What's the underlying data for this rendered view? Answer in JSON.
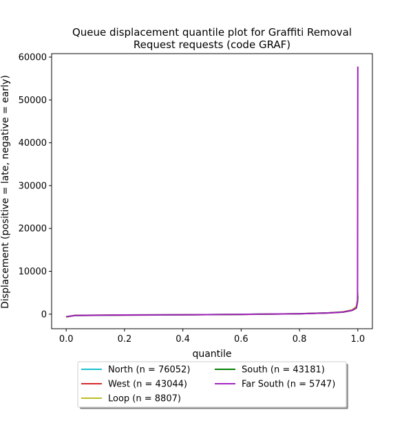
{
  "chart_data": {
    "type": "line",
    "title_lines": [
      "Queue displacement quantile plot for Graffiti Removal",
      "Request  requests (code GRAF)"
    ],
    "xlabel": "quantile",
    "ylabel": "Displacement (positive = late, negative = early)",
    "xlim": [
      -0.05,
      1.05
    ],
    "ylim": [
      -3400,
      60800
    ],
    "x_ticks": [
      0.0,
      0.2,
      0.4,
      0.6,
      0.8,
      1.0
    ],
    "x_tick_labels": [
      "0.0",
      "0.2",
      "0.4",
      "0.6",
      "0.8",
      "1.0"
    ],
    "y_ticks": [
      0,
      10000,
      20000,
      30000,
      40000,
      50000,
      60000
    ],
    "y_tick_labels": [
      "0",
      "10000",
      "20000",
      "30000",
      "40000",
      "50000",
      "60000"
    ],
    "grid": false,
    "legend_placement": "below plot, two columns",
    "series": [
      {
        "name": "North (n = 76052)",
        "color": "#17becf",
        "x": [
          0.0,
          0.03,
          0.2,
          0.4,
          0.6,
          0.8,
          0.9,
          0.95,
          0.98,
          0.995,
          0.999,
          1.0
        ],
        "y": [
          -600,
          -300,
          -200,
          -150,
          -50,
          100,
          300,
          500,
          900,
          1500,
          3000,
          4500
        ]
      },
      {
        "name": "West (n = 43044)",
        "color": "#d62728",
        "x": [
          0.0,
          0.03,
          0.2,
          0.4,
          0.6,
          0.8,
          0.9,
          0.95,
          0.98,
          0.995,
          0.999,
          1.0
        ],
        "y": [
          -650,
          -320,
          -220,
          -160,
          -60,
          90,
          280,
          480,
          850,
          1400,
          2800,
          4000
        ]
      },
      {
        "name": "Loop (n = 8807)",
        "color": "#bcbd22",
        "x": [
          0.0,
          0.03,
          0.2,
          0.4,
          0.6,
          0.8,
          0.9,
          0.95,
          0.98,
          0.995,
          0.999,
          1.0
        ],
        "y": [
          -580,
          -280,
          -190,
          -140,
          -40,
          110,
          320,
          550,
          1000,
          1800,
          3500,
          5000
        ]
      },
      {
        "name": "South (n = 43181)",
        "color": "#008000",
        "x": [
          0.0,
          0.03,
          0.2,
          0.4,
          0.6,
          0.8,
          0.9,
          0.95,
          0.98,
          0.995,
          0.999,
          1.0
        ],
        "y": [
          -620,
          -310,
          -210,
          -155,
          -55,
          95,
          290,
          490,
          880,
          1450,
          2900,
          4200
        ]
      },
      {
        "name": "Far South (n = 5747)",
        "color": "#a020c0",
        "x": [
          0.0,
          0.03,
          0.2,
          0.4,
          0.6,
          0.8,
          0.9,
          0.95,
          0.98,
          0.995,
          0.999,
          1.0
        ],
        "y": [
          -600,
          -300,
          -200,
          -150,
          -50,
          100,
          300,
          500,
          900,
          1500,
          3000,
          57800
        ]
      }
    ],
    "legend_columns": [
      [
        "North (n = 76052)",
        "West (n = 43044)",
        "Loop (n = 8807)"
      ],
      [
        "South (n = 43181)",
        "Far South (n = 5747)"
      ]
    ]
  }
}
